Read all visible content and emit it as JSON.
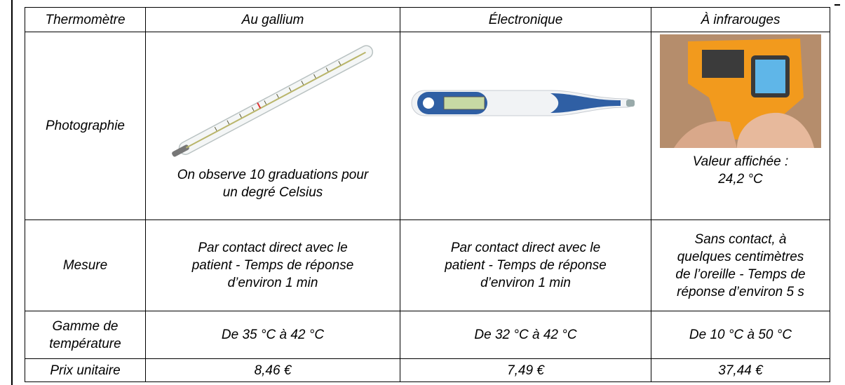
{
  "table": {
    "header": [
      "Thermomètre",
      "Au gallium",
      "Électronique",
      "À infrarouges"
    ],
    "photo_row": {
      "label": "Photographie",
      "gallium_caption": [
        "On observe 10 graduations pour",
        "un degré Celsius"
      ],
      "infrared_caption": [
        "Valeur affichée :",
        "24,2 °C"
      ]
    },
    "measure_row": {
      "label": "Mesure",
      "cells": [
        [
          "Par contact direct avec le",
          "patient - Temps de réponse",
          "d’environ 1 min"
        ],
        [
          "Par contact direct avec le",
          "patient - Temps de réponse",
          "d’environ 1 min"
        ],
        [
          "Sans contact, à",
          "quelques centimètres",
          "de l’oreille - Temps de",
          "réponse d’environ 5 s"
        ]
      ]
    },
    "range_row": {
      "label": [
        "Gamme de",
        "température"
      ],
      "cells": [
        "De 35 °C à 42 °C",
        "De 32 °C à 42 °C",
        "De 10 °C à 50 °C"
      ]
    },
    "price_row": {
      "label": "Prix unitaire",
      "cells": [
        "8,46 €",
        "7,49 €",
        "37,44 €"
      ]
    }
  }
}
